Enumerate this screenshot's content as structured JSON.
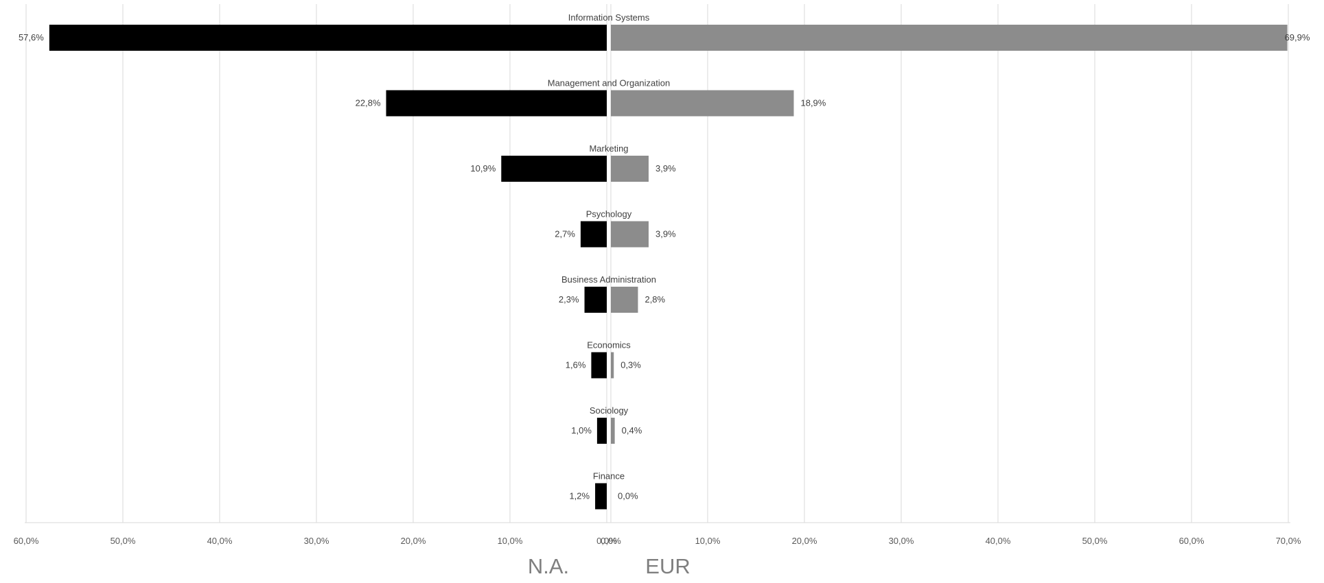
{
  "chart_data": {
    "type": "bar",
    "orientation": "horizontal-diverging",
    "categories": [
      "Information Systems",
      "Management and Organization",
      "Marketing",
      "Psychology",
      "Business Administration",
      "Economics",
      "Sociology",
      "Finance"
    ],
    "series": [
      {
        "name": "N.A.",
        "color": "#000000",
        "values": [
          57.6,
          22.8,
          10.9,
          2.7,
          2.3,
          1.6,
          1.0,
          1.2
        ],
        "labels": [
          "57,6%",
          "22,8%",
          "10,9%",
          "2,7%",
          "2,3%",
          "1,6%",
          "1,0%",
          "1,2%"
        ]
      },
      {
        "name": "EUR",
        "color": "#8c8c8c",
        "values": [
          69.9,
          18.9,
          3.9,
          3.9,
          2.8,
          0.3,
          0.4,
          0.0
        ],
        "labels": [
          "69,9%",
          "18,9%",
          "3,9%",
          "3,9%",
          "2,8%",
          "0,3%",
          "0,4%",
          "0,0%"
        ]
      }
    ],
    "left_axis_ticks": [
      "60,0%",
      "50,0%",
      "40,0%",
      "30,0%",
      "20,0%",
      "10,0%",
      "0,0%"
    ],
    "right_axis_ticks": [
      "0,0%",
      "10,0%",
      "20,0%",
      "30,0%",
      "40,0%",
      "50,0%",
      "60,0%",
      "70,0%"
    ],
    "left_axis_range": [
      0,
      60
    ],
    "right_axis_range": [
      0,
      70
    ],
    "grid": true,
    "title": "",
    "xlabel": "",
    "ylabel": ""
  }
}
